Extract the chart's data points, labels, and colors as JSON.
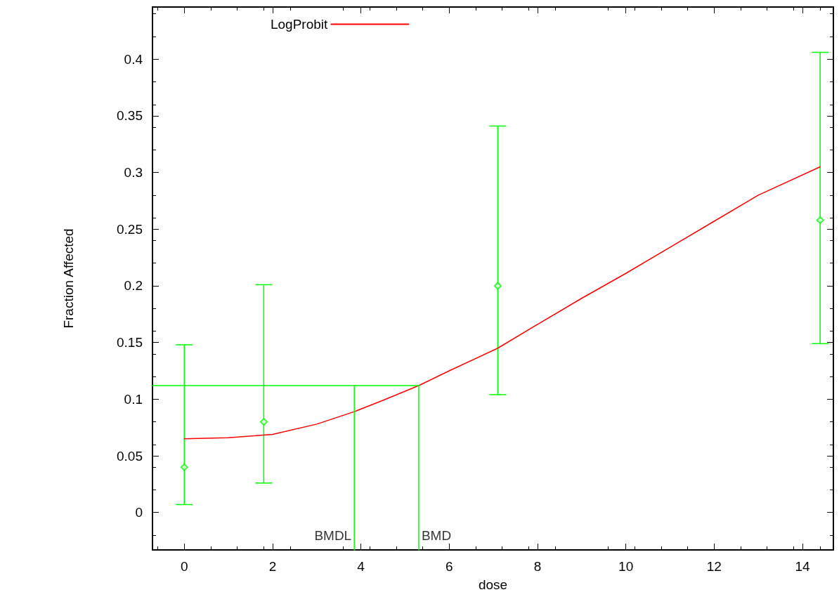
{
  "chart_data": {
    "type": "scatter",
    "xlabel": "dose",
    "ylabel": "Fraction Affected",
    "xlim": [
      -0.72,
      14.7
    ],
    "xticks": [
      0,
      2,
      4,
      6,
      8,
      10,
      12,
      14
    ],
    "ylim": [
      -0.033,
      0.446
    ],
    "yticks": [
      0,
      0.05,
      0.1,
      0.15,
      0.2,
      0.25,
      0.3,
      0.35,
      0.4
    ],
    "grid": false,
    "legend": "top left",
    "series": [
      {
        "name": "LogProbit",
        "type": "line",
        "color": "#ff0000",
        "marker": "none",
        "x": [
          0,
          1,
          2,
          3,
          3.85,
          4.5,
          5.31,
          6,
          7.1,
          8,
          9,
          10,
          11,
          12,
          13,
          14.4
        ],
        "values": [
          0.065,
          0.066,
          0.069,
          0.078,
          0.089,
          0.099,
          0.112,
          0.125,
          0.145,
          0.166,
          0.189,
          0.211,
          0.234,
          0.257,
          0.28,
          0.305
        ]
      },
      {
        "color": "#00ff00",
        "marker": "diamond",
        "x": [
          0,
          1.8,
          7.1,
          14.4
        ],
        "values": [
          0.04,
          0.08,
          0.2,
          0.258
        ],
        "errors": [
          [
            0.007,
            0.148
          ],
          [
            0.026,
            0.201
          ],
          [
            0.104,
            0.341
          ],
          [
            0.149,
            0.406
          ]
        ]
      },
      {
        "type": "line",
        "color": "#00ff00",
        "marker": "none",
        "x": [
          -0.72,
          5.31
        ],
        "values": [
          0.112,
          0.112
        ]
      },
      {
        "type": "line",
        "color": "#00ff00",
        "marker": "none",
        "x": [
          3.85,
          3.85
        ],
        "values": [
          -0.033,
          0.112
        ]
      },
      {
        "type": "line",
        "color": "#00ff00",
        "marker": "none",
        "x": [
          5.31,
          5.31
        ],
        "values": [
          -0.033,
          0.112
        ]
      }
    ],
    "annotations": [
      {
        "text": "BMDL",
        "x": 3.85,
        "y": -0.02
      },
      {
        "text": "BMD",
        "x": 5.31,
        "y": -0.02
      }
    ]
  }
}
